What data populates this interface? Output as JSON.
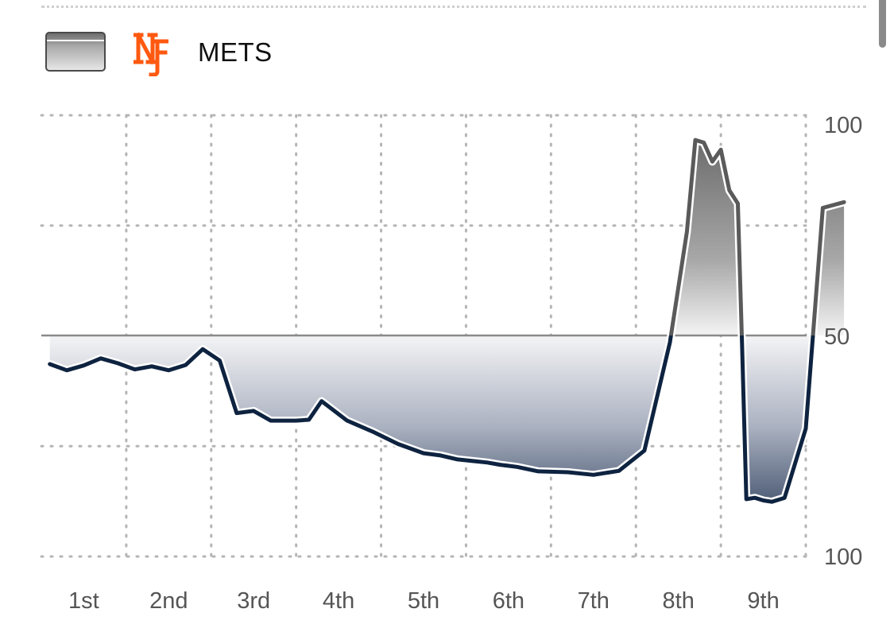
{
  "legend": {
    "team_name": "METS",
    "logo_icon": "ny-mets-logo-icon"
  },
  "colors": {
    "mets_line": "#5a5a5a",
    "opponent_line": "#0e2340",
    "mets_logo": "#ff5910",
    "midline": "#8a8a8a",
    "grid": "#b5b5b5"
  },
  "chart_data": {
    "type": "area",
    "title": "",
    "xlabel": "",
    "ylabel": "",
    "x_tick_labels": [
      "1st",
      "2nd",
      "3rd",
      "4th",
      "5th",
      "6th",
      "7th",
      "8th",
      "9th"
    ],
    "y_tick_labels": [
      "100",
      "50",
      "100"
    ],
    "y_tick_values": [
      100,
      50,
      0
    ],
    "ylim": [
      0,
      100
    ],
    "xlim": [
      0,
      9
    ],
    "grid": true,
    "legend_position": "top-left",
    "series": [
      {
        "name": "METS",
        "x": [
          0.1,
          0.3,
          0.5,
          0.7,
          0.9,
          1.1,
          1.3,
          1.5,
          1.7,
          1.9,
          2.1,
          2.3,
          2.5,
          2.7,
          3.0,
          3.15,
          3.3,
          3.6,
          3.9,
          4.2,
          4.5,
          4.7,
          4.9,
          5.1,
          5.25,
          5.4,
          5.6,
          5.85,
          6.2,
          6.5,
          6.8,
          7.1,
          7.4,
          7.6,
          7.7,
          7.8,
          7.9,
          8.0,
          8.1,
          8.2,
          8.25,
          8.3,
          8.4,
          8.5,
          8.6,
          8.75,
          9.0,
          9.2,
          9.45
        ],
        "values": [
          43.6,
          42.2,
          43.3,
          44.9,
          43.8,
          42.4,
          43.1,
          42.2,
          43.4,
          47.0,
          44.4,
          32.5,
          33.0,
          30.8,
          30.8,
          31.0,
          35.2,
          30.8,
          28.3,
          25.5,
          23.4,
          22.9,
          22.0,
          21.6,
          21.3,
          20.8,
          20.3,
          19.3,
          19.1,
          18.5,
          19.4,
          24.0,
          48.5,
          73.6,
          94.4,
          93.8,
          89.5,
          92.2,
          83.0,
          80.0,
          48.0,
          13.0,
          13.3,
          12.7,
          12.4,
          13.3,
          29.0,
          79.0,
          80.3
        ]
      }
    ]
  }
}
